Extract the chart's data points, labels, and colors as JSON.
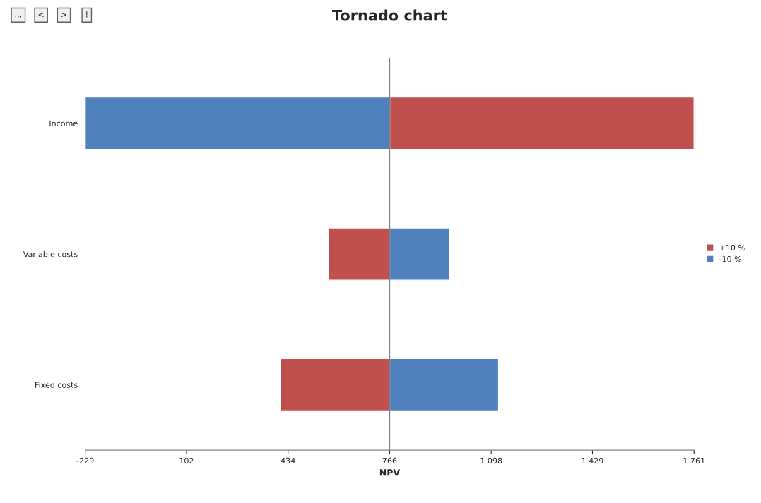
{
  "chart_data": {
    "type": "bar",
    "orientation": "horizontal",
    "title": "Tornado chart",
    "xlabel": "NPV",
    "categories": [
      "Income",
      "Variable costs",
      "Fixed costs"
    ],
    "series": [
      {
        "name": "+10 %",
        "color": "#c0504d",
        "base": [
          766,
          565,
          410
        ],
        "values": [
          995,
          201,
          356
        ]
      },
      {
        "name": "-10 %",
        "color": "#4f81bd",
        "base": [
          -229,
          766,
          766
        ],
        "values": [
          995,
          196,
          356
        ]
      }
    ],
    "xlim": [
      -229,
      1761
    ],
    "xticks": [
      -229,
      102,
      434,
      766,
      {
        "value": 1098,
        "label": "1 098"
      },
      {
        "value": 1429,
        "label": "1 429"
      },
      {
        "value": 1761,
        "label": "1 761"
      }
    ],
    "ref_lines": [
      {
        "axis": "x",
        "value": 766,
        "color": "#808080"
      }
    ],
    "grid": false,
    "legend": "right",
    "annotations": [
      "...",
      "<",
      ">",
      "!"
    ]
  }
}
